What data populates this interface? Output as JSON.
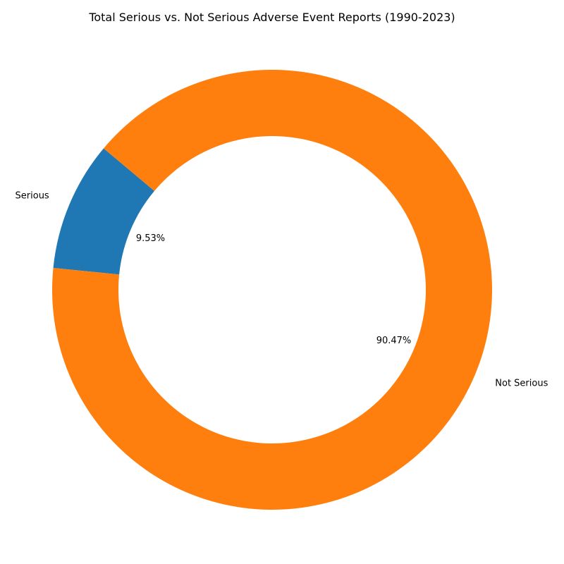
{
  "chart_data": {
    "type": "pie",
    "style": "donut",
    "title": "Total Serious vs. Not Serious Adverse Event Reports (1990-2023)",
    "categories": [
      "Serious",
      "Not Serious"
    ],
    "values": [
      9.53,
      90.47
    ],
    "labels": [
      "9.53%",
      "90.47%"
    ],
    "colors": [
      "#1f77b4",
      "#ff7f0e"
    ],
    "start_angle_deg": 140,
    "direction": "counterclockwise",
    "legend": "none"
  }
}
